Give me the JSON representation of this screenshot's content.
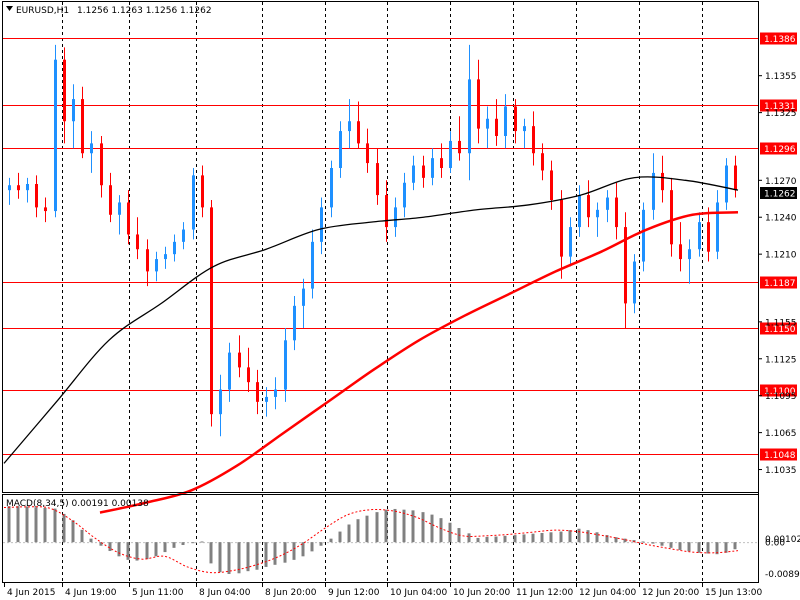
{
  "header": {
    "dropdown_icon": "triangle-down-icon",
    "symbol_timeframe": "EURUSD,H1",
    "ohlc_values": "1.1256 1.1263 1.1256 1.1262"
  },
  "price_axis": {
    "ticks": [
      "1.1355",
      "1.1325",
      "1.1270",
      "1.1240",
      "1.1210",
      "1.1155",
      "1.1125",
      "1.1095",
      "1.1065",
      "1.1035"
    ],
    "range": [
      1.102,
      1.141
    ]
  },
  "horizontal_levels": {
    "color": "#ff0000",
    "values": [
      "1.1386",
      "1.1331",
      "1.1296",
      "1.1187",
      "1.1150",
      "1.1100",
      "1.1048"
    ]
  },
  "current_price": {
    "label": "1.1262"
  },
  "time_axis": {
    "labels": [
      "4 Jun 2015",
      "4 Jun 19:00",
      "5 Jun 11:00",
      "8 Jun 04:00",
      "8 Jun 20:00",
      "9 Jun 12:00",
      "10 Jun 04:00",
      "10 Jun 20:00",
      "11 Jun 12:00",
      "12 Jun 04:00",
      "12 Jun 20:00",
      "15 Jun 13:00"
    ]
  },
  "macd": {
    "label": "MACD(8,34,5) 0.00191 0.00138",
    "ticks": [
      "0.00102",
      "0.00",
      "-0.00892"
    ],
    "range": [
      -0.0107,
      0.0125
    ]
  },
  "colors": {
    "bull_candle": "#1e90ff",
    "bear_candle": "#ff0000",
    "ma_long": "#ff0000",
    "ma_short": "#000000",
    "macd_hist": "#808080",
    "macd_signal": "#ff0000",
    "grid": "#000000",
    "levels": "#ff0000"
  },
  "chart_data": {
    "type": "candlestick",
    "symbol": "EURUSD",
    "timeframe": "H1",
    "ohlc": [
      [
        1.1262,
        1.1272,
        1.125,
        1.1266
      ],
      [
        1.1266,
        1.1276,
        1.1255,
        1.1262
      ],
      [
        1.1262,
        1.1272,
        1.1252,
        1.1267
      ],
      [
        1.1267,
        1.1274,
        1.124,
        1.1248
      ],
      [
        1.1248,
        1.1256,
        1.1236,
        1.1245
      ],
      [
        1.1245,
        1.138,
        1.124,
        1.1368
      ],
      [
        1.1368,
        1.1378,
        1.13,
        1.1318
      ],
      [
        1.1318,
        1.1348,
        1.1296,
        1.1336
      ],
      [
        1.1336,
        1.1346,
        1.1288,
        1.1292
      ],
      [
        1.1292,
        1.131,
        1.1276,
        1.13
      ],
      [
        1.13,
        1.1306,
        1.1256,
        1.1266
      ],
      [
        1.1266,
        1.1276,
        1.1236,
        1.1242
      ],
      [
        1.1242,
        1.1258,
        1.1226,
        1.1252
      ],
      [
        1.1252,
        1.1262,
        1.1218,
        1.1226
      ],
      [
        1.1226,
        1.124,
        1.1206,
        1.1214
      ],
      [
        1.1214,
        1.1222,
        1.1184,
        1.1196
      ],
      [
        1.1196,
        1.1212,
        1.1188,
        1.1206
      ],
      [
        1.1206,
        1.1216,
        1.1198,
        1.121
      ],
      [
        1.121,
        1.1226,
        1.1204,
        1.122
      ],
      [
        1.122,
        1.1236,
        1.1214,
        1.123
      ],
      [
        1.123,
        1.128,
        1.1222,
        1.1274
      ],
      [
        1.1274,
        1.1282,
        1.124,
        1.1248
      ],
      [
        1.1248,
        1.1254,
        1.107,
        1.108
      ],
      [
        1.108,
        1.1112,
        1.1062,
        1.11
      ],
      [
        1.11,
        1.1138,
        1.109,
        1.113
      ],
      [
        1.113,
        1.1144,
        1.111,
        1.1118
      ],
      [
        1.1118,
        1.1134,
        1.1098,
        1.1106
      ],
      [
        1.1106,
        1.1116,
        1.108,
        1.109
      ],
      [
        1.109,
        1.1102,
        1.1078,
        1.1094
      ],
      [
        1.1094,
        1.111,
        1.1084,
        1.11
      ],
      [
        1.11,
        1.115,
        1.109,
        1.114
      ],
      [
        1.114,
        1.1176,
        1.1132,
        1.1168
      ],
      [
        1.1168,
        1.119,
        1.115,
        1.1182
      ],
      [
        1.1182,
        1.123,
        1.1174,
        1.122
      ],
      [
        1.122,
        1.1256,
        1.121,
        1.1248
      ],
      [
        1.1248,
        1.1286,
        1.124,
        1.128
      ],
      [
        1.128,
        1.1318,
        1.1272,
        1.131
      ],
      [
        1.131,
        1.1336,
        1.1296,
        1.1318
      ],
      [
        1.1318,
        1.1334,
        1.1296,
        1.13
      ],
      [
        1.13,
        1.1312,
        1.1276,
        1.1284
      ],
      [
        1.1284,
        1.1296,
        1.125,
        1.1258
      ],
      [
        1.1258,
        1.127,
        1.122,
        1.1232
      ],
      [
        1.1232,
        1.1256,
        1.1224,
        1.1248
      ],
      [
        1.1248,
        1.1276,
        1.124,
        1.1268
      ],
      [
        1.1268,
        1.129,
        1.1262,
        1.1282
      ],
      [
        1.1282,
        1.129,
        1.1264,
        1.1272
      ],
      [
        1.1272,
        1.1296,
        1.1266,
        1.1288
      ],
      [
        1.1288,
        1.13,
        1.1272,
        1.128
      ],
      [
        1.128,
        1.131,
        1.1276,
        1.1302
      ],
      [
        1.1302,
        1.1322,
        1.1286,
        1.1292
      ],
      [
        1.1292,
        1.138,
        1.127,
        1.1352
      ],
      [
        1.1352,
        1.1368,
        1.13,
        1.1312
      ],
      [
        1.1312,
        1.133,
        1.1296,
        1.132
      ],
      [
        1.132,
        1.1336,
        1.1298,
        1.1306
      ],
      [
        1.1306,
        1.134,
        1.1296,
        1.133
      ],
      [
        1.133,
        1.1336,
        1.13,
        1.131
      ],
      [
        1.131,
        1.132,
        1.1296,
        1.1314
      ],
      [
        1.1314,
        1.1326,
        1.1282,
        1.1292
      ],
      [
        1.1292,
        1.13,
        1.127,
        1.1278
      ],
      [
        1.1278,
        1.1286,
        1.1246,
        1.1254
      ],
      [
        1.1254,
        1.1262,
        1.119,
        1.1208
      ],
      [
        1.1208,
        1.124,
        1.12,
        1.1232
      ],
      [
        1.1232,
        1.1266,
        1.1224,
        1.1258
      ],
      [
        1.1258,
        1.127,
        1.1232,
        1.124
      ],
      [
        1.124,
        1.1252,
        1.1224,
        1.1246
      ],
      [
        1.1246,
        1.1262,
        1.1236,
        1.1256
      ],
      [
        1.1256,
        1.1268,
        1.1222,
        1.1232
      ],
      [
        1.1232,
        1.1244,
        1.115,
        1.117
      ],
      [
        1.117,
        1.121,
        1.1162,
        1.1204
      ],
      [
        1.1204,
        1.1252,
        1.1196,
        1.1246
      ],
      [
        1.1246,
        1.1292,
        1.1238,
        1.1276
      ],
      [
        1.1276,
        1.129,
        1.1252,
        1.1262
      ],
      [
        1.1262,
        1.1272,
        1.1208,
        1.1218
      ],
      [
        1.1218,
        1.1236,
        1.1196,
        1.1206
      ],
      [
        1.1206,
        1.1222,
        1.1186,
        1.1214
      ],
      [
        1.1214,
        1.1244,
        1.1208,
        1.1236
      ],
      [
        1.1236,
        1.1248,
        1.1204,
        1.1212
      ],
      [
        1.1212,
        1.1262,
        1.1206,
        1.1252
      ],
      [
        1.1252,
        1.1288,
        1.1246,
        1.1282
      ],
      [
        1.1282,
        1.129,
        1.1256,
        1.1262
      ]
    ],
    "ma_long_control": [
      1.1,
      1.1008,
      1.1018,
      1.1038,
      1.1064,
      1.109,
      1.1116,
      1.114,
      1.116,
      1.1178,
      1.1196,
      1.1212,
      1.123,
      1.1242,
      1.1244
    ],
    "ma_short_control": [
      1.104,
      1.109,
      1.114,
      1.117,
      1.12,
      1.1214,
      1.123,
      1.1236,
      1.124,
      1.1246,
      1.125,
      1.1258,
      1.1272,
      1.127,
      1.1262
    ],
    "macd_hist": [
      0.0102,
      0.0102,
      0.0101,
      0.0099,
      0.0097,
      0.0095,
      0.008,
      0.0062,
      0.0035,
      0.001,
      -0.001,
      -0.0025,
      -0.004,
      -0.005,
      -0.0052,
      -0.0048,
      -0.004,
      -0.0028,
      -0.0016,
      -0.0008,
      -0.0002,
      0.0002,
      -0.006,
      -0.0085,
      -0.009,
      -0.0088,
      -0.0082,
      -0.0078,
      -0.007,
      -0.0064,
      -0.0058,
      -0.005,
      -0.004,
      -0.0026,
      -0.001,
      0.001,
      0.003,
      0.005,
      0.0065,
      0.0075,
      0.0085,
      0.0092,
      0.0094,
      0.0092,
      0.009,
      0.0085,
      0.0078,
      0.0068,
      0.0055,
      0.004,
      0.0025,
      0.0012,
      0.0015,
      0.0016,
      0.0018,
      0.002,
      0.0022,
      0.0024,
      0.0026,
      0.0028,
      0.003,
      0.0034,
      0.0038,
      0.0034,
      0.0028,
      0.002,
      0.0014,
      0.001,
      0.0006,
      0.0002,
      -0.0004,
      -0.001,
      -0.0016,
      -0.0022,
      -0.0026,
      -0.003,
      -0.0032,
      -0.0034,
      -0.003,
      -0.002
    ],
    "macd_signal_control": [
      0.0098,
      0.01,
      0.0096,
      0.006,
      0.001,
      -0.003,
      -0.0048,
      -0.004,
      -0.007,
      -0.0086,
      -0.008,
      -0.0064,
      -0.004,
      -0.0005,
      0.004,
      0.0078,
      0.0092,
      0.0088,
      0.007,
      0.004,
      0.0018,
      0.0018,
      0.0022,
      0.0028,
      0.0034,
      0.003,
      0.002,
      0.0008,
      -0.0006,
      -0.0018,
      -0.0028,
      -0.003,
      -0.0024
    ]
  }
}
